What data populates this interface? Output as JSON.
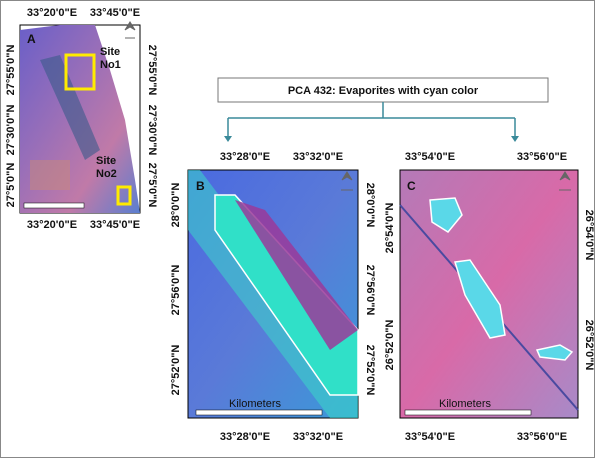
{
  "banner": {
    "text": "PCA 432:  Evaporites  with cyan color"
  },
  "panels": [
    {
      "label": "A",
      "top_ticks": [
        "33°20'0\"E",
        "33°45'0\"E"
      ],
      "bottom_ticks": [
        "33°20'0\"E",
        "33°45'0\"E"
      ],
      "left_ticks": [
        "27°55'0\"N",
        "27°30'0\"N",
        "27°5'0\"N"
      ],
      "right_ticks": [
        "27°55'0\"N",
        "27°30'0\"N",
        "27°5'0\"N"
      ],
      "sites": [
        {
          "line1": "Site",
          "line2": "No1"
        },
        {
          "line1": "Site",
          "line2": "No2"
        }
      ]
    },
    {
      "label": "B",
      "top_ticks": [
        "33°28'0\"E",
        "33°32'0\"E"
      ],
      "bottom_ticks": [
        "33°28'0\"E",
        "33°32'0\"E"
      ],
      "left_ticks": [
        "28°0'0\"N",
        "27°56'0\"N",
        "27°52'0\"N"
      ],
      "right_ticks": [
        "28°0'0\"N",
        "27°56'0\"N",
        "27°52'0\"N"
      ],
      "scale_label": "Kilometers"
    },
    {
      "label": "C",
      "top_ticks": [
        "33°54'0\"E",
        "33°56'0\"E"
      ],
      "bottom_ticks": [
        "33°54'0\"E",
        "33°56'0\"E"
      ],
      "left_ticks": [
        "26°54'0\"N",
        "26°52'0\"N"
      ],
      "right_ticks": [
        "26°54'0\"N",
        "26°52'0\"N"
      ],
      "scale_label": "Kilometers"
    }
  ]
}
